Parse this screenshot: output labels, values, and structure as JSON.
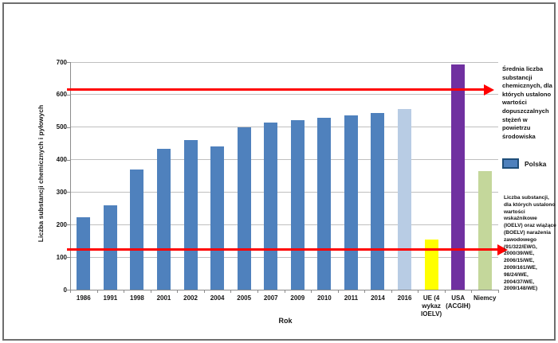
{
  "chart_data": {
    "type": "bar",
    "title": "",
    "xlabel": "Rok",
    "ylabel": "Liczba substancji chemicznych i pyłowych",
    "ylim": [
      0,
      700
    ],
    "ytick_step": 100,
    "grid": "horizontal",
    "categories": [
      "1986",
      "1991",
      "1998",
      "2001",
      "2002",
      "2004",
      "2005",
      "2007",
      "2009",
      "2010",
      "2011",
      "2014",
      "2016",
      "UE (4 wykaz IOELV)",
      "USA (ACGIH)",
      "Niemcy"
    ],
    "values": [
      222,
      260,
      370,
      432,
      460,
      440,
      500,
      513,
      522,
      528,
      537,
      543,
      556,
      155,
      693,
      365
    ],
    "bar_colors": [
      "#4f81bd",
      "#4f81bd",
      "#4f81bd",
      "#4f81bd",
      "#4f81bd",
      "#4f81bd",
      "#4f81bd",
      "#4f81bd",
      "#4f81bd",
      "#4f81bd",
      "#4f81bd",
      "#4f81bd",
      "#b8cce4",
      "#ffff00",
      "#7030a0",
      "#c4d79b"
    ],
    "legend": {
      "label": "Polska",
      "color": "#4f81bd",
      "position": "right"
    },
    "arrows": [
      {
        "value": 615,
        "color": "#ff0000",
        "direction": "right"
      },
      {
        "value": 123,
        "color": "#ff0000",
        "direction": "right"
      }
    ],
    "annotations": [
      {
        "id": "top",
        "text": "Średnia liczba substancji chemicznych, dla których ustalono wartości dopuszczalnych stężeń w powietrzu środowiska"
      },
      {
        "id": "bottom",
        "text": "Liczba substancji, dla których ustalono wartości wskaźnikowe (IOELV) oraz wiążące (BOELV) narażenia zawodowego (91/322/EWG, 2000/39/WE, 2006/15/WE, 2009/161/WE, 98/24/WE, 2004/37/WE, 2009/148/WE)"
      }
    ]
  }
}
